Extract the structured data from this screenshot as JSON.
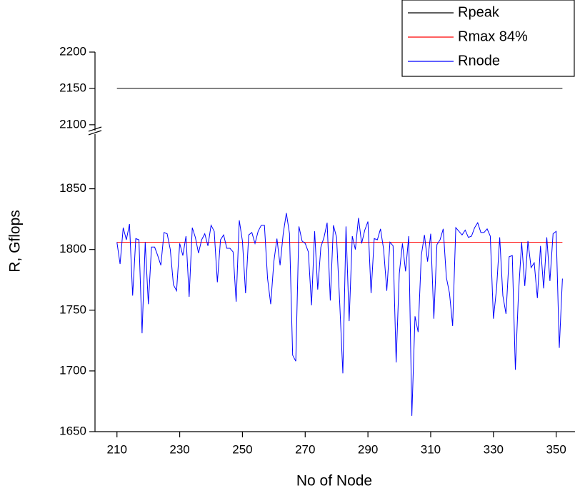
{
  "chart_data": {
    "type": "line",
    "xlabel": "No of Node",
    "ylabel": "R, Gflops",
    "xlim": [
      203,
      356
    ],
    "xticks": [
      210,
      230,
      250,
      270,
      290,
      310,
      330,
      350
    ],
    "ylim": [
      1650,
      2200
    ],
    "ybreak": [
      1895,
      2092
    ],
    "yticks": [
      1650,
      1700,
      1750,
      1800,
      1850,
      2100,
      2150,
      2200
    ],
    "legend": "top-right",
    "series": [
      {
        "name": "Rpeak",
        "color": "#000000",
        "x": [
          210,
          352
        ],
        "values": [
          2150,
          2150
        ]
      },
      {
        "name": "Rmax 84%",
        "color": "#ff0000",
        "x": [
          210,
          352
        ],
        "values": [
          1806,
          1806
        ]
      },
      {
        "name": "Rnode",
        "color": "#0000ff",
        "x": [
          210,
          211,
          212,
          213,
          214,
          215,
          216,
          217,
          218,
          219,
          220,
          221,
          222,
          223,
          224,
          225,
          226,
          227,
          228,
          229,
          230,
          231,
          232,
          233,
          234,
          235,
          236,
          237,
          238,
          239,
          240,
          241,
          242,
          243,
          244,
          245,
          246,
          247,
          248,
          249,
          250,
          251,
          252,
          253,
          254,
          255,
          256,
          257,
          258,
          259,
          260,
          261,
          262,
          263,
          264,
          265,
          266,
          267,
          268,
          269,
          270,
          271,
          272,
          273,
          274,
          275,
          276,
          277,
          278,
          279,
          280,
          281,
          282,
          283,
          284,
          285,
          286,
          287,
          288,
          289,
          290,
          291,
          292,
          293,
          294,
          295,
          296,
          297,
          298,
          299,
          300,
          301,
          302,
          303,
          304,
          305,
          306,
          307,
          308,
          309,
          310,
          311,
          312,
          313,
          314,
          315,
          316,
          317,
          318,
          319,
          320,
          321,
          322,
          323,
          324,
          325,
          326,
          327,
          328,
          329,
          330,
          331,
          332,
          333,
          334,
          335,
          336,
          337,
          338,
          339,
          340,
          341,
          342,
          343,
          344,
          345,
          346,
          347,
          348,
          349,
          350,
          351,
          352
        ],
        "values": [
          1806,
          1788,
          1818,
          1808,
          1821,
          1762,
          1809,
          1808,
          1731,
          1806,
          1755,
          1802,
          1802,
          1795,
          1787,
          1814,
          1813,
          1800,
          1771,
          1766,
          1805,
          1795,
          1811,
          1761,
          1818,
          1810,
          1797,
          1808,
          1813,
          1803,
          1820,
          1815,
          1773,
          1808,
          1812,
          1801,
          1801,
          1798,
          1757,
          1824,
          1807,
          1764,
          1812,
          1814,
          1805,
          1815,
          1820,
          1820,
          1776,
          1755,
          1790,
          1809,
          1787,
          1813,
          1830,
          1813,
          1713,
          1708,
          1819,
          1807,
          1805,
          1798,
          1754,
          1815,
          1767,
          1802,
          1810,
          1822,
          1758,
          1820,
          1810,
          1756,
          1698,
          1819,
          1741,
          1811,
          1800,
          1826,
          1805,
          1816,
          1823,
          1764,
          1809,
          1808,
          1817,
          1800,
          1766,
          1806,
          1803,
          1707,
          1780,
          1805,
          1782,
          1811,
          1663,
          1745,
          1732,
          1795,
          1812,
          1790,
          1813,
          1743,
          1804,
          1808,
          1817,
          1777,
          1764,
          1737,
          1818,
          1815,
          1812,
          1816,
          1810,
          1811,
          1818,
          1822,
          1814,
          1814,
          1817,
          1811,
          1743,
          1768,
          1810,
          1762,
          1747,
          1794,
          1795,
          1701,
          1764,
          1806,
          1770,
          1807,
          1785,
          1789,
          1760,
          1803,
          1768,
          1810,
          1774,
          1813,
          1815,
          1719,
          1776
        ]
      }
    ]
  }
}
